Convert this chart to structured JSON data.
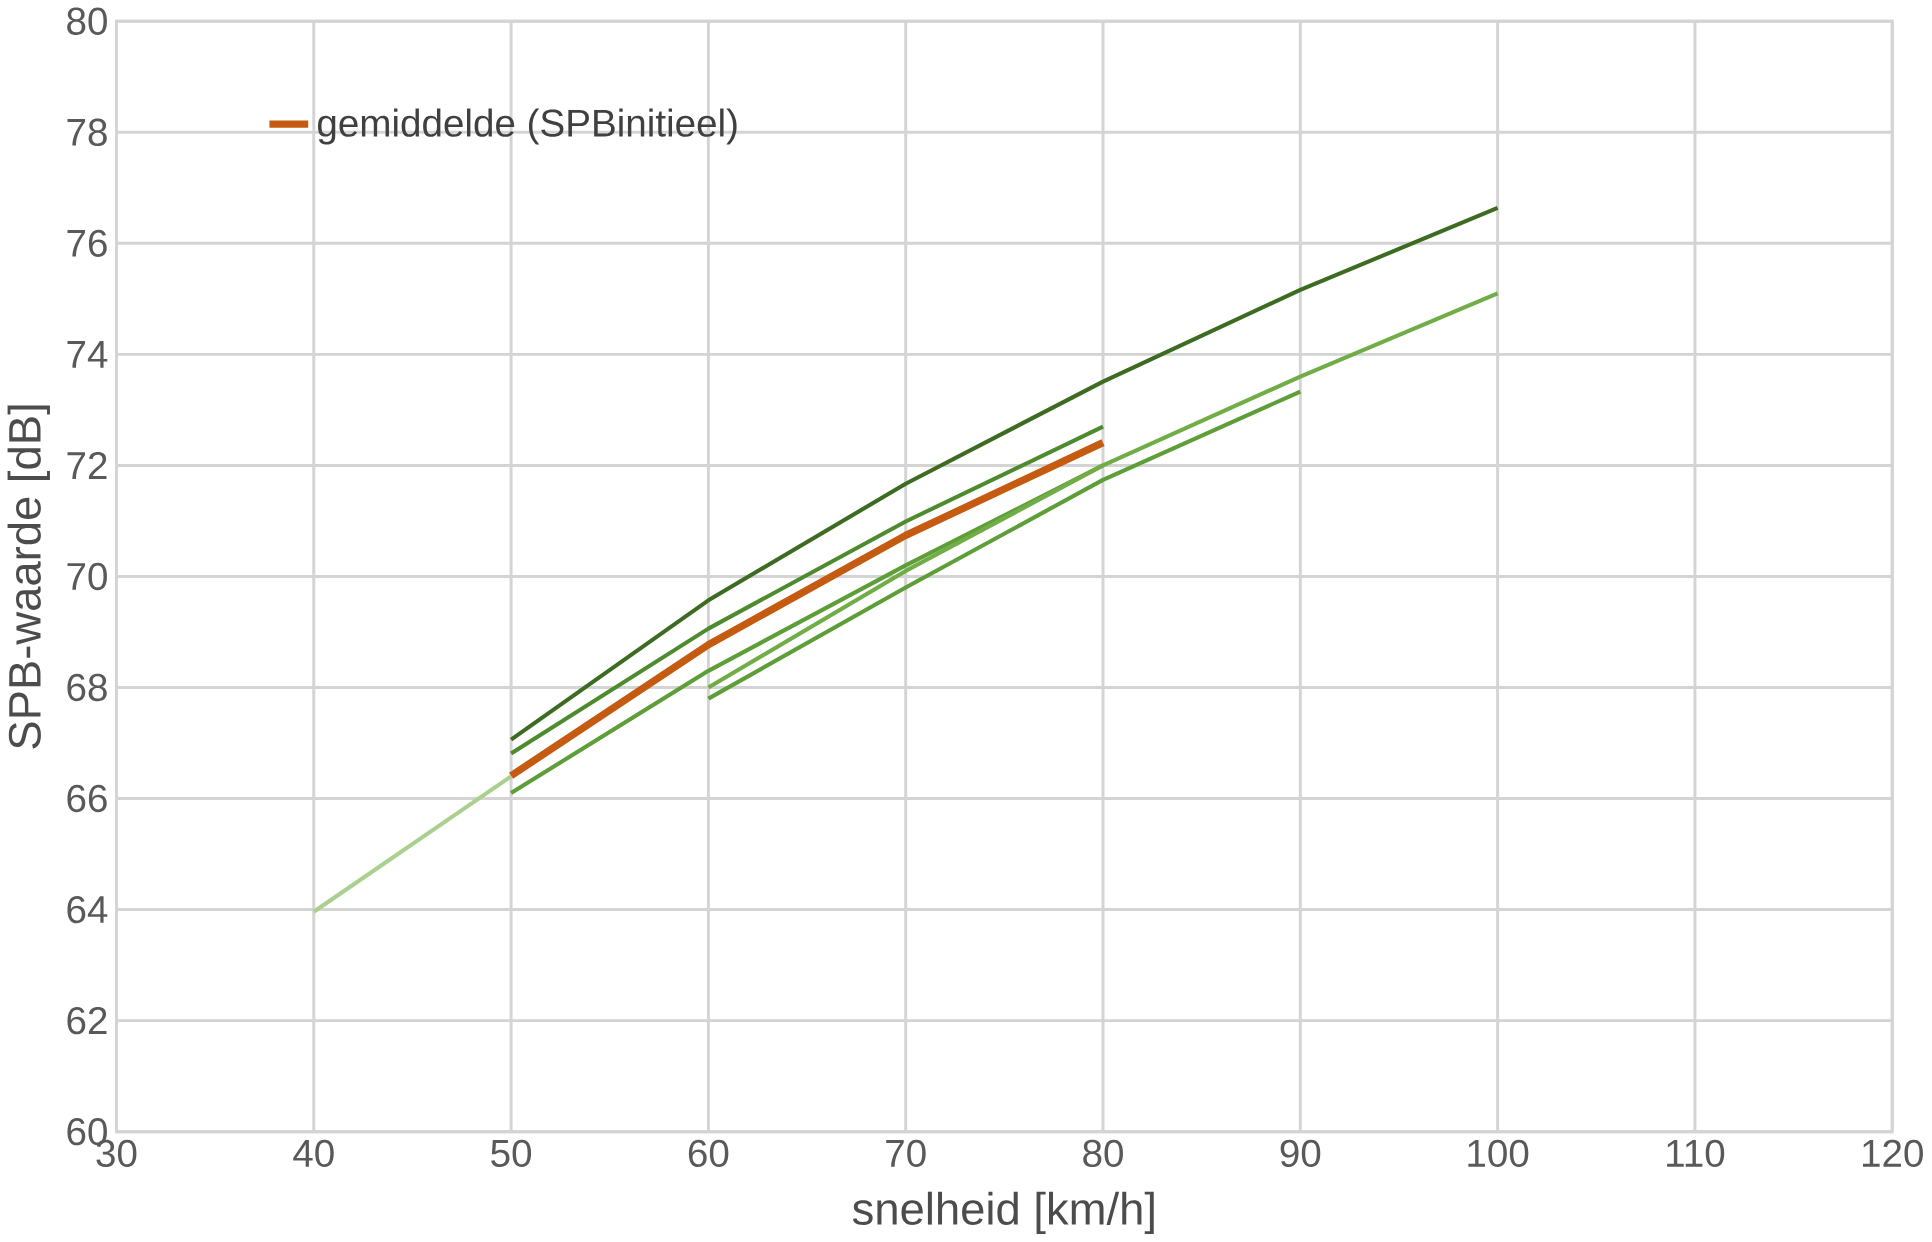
{
  "chart_data": {
    "type": "line",
    "xlabel": "snelheid [km/h]",
    "ylabel": "SPB-waarde [dB]",
    "xlim": [
      30,
      120
    ],
    "xticks": [
      30,
      40,
      50,
      60,
      70,
      80,
      90,
      100,
      110,
      120
    ],
    "ylim": [
      60,
      80
    ],
    "yticks": [
      60,
      62,
      64,
      66,
      68,
      70,
      72,
      74,
      76,
      78,
      80
    ],
    "grid": true,
    "legend": "top left",
    "marker": "none",
    "series": [
      {
        "color": "#a9d08e",
        "x": [
          40,
          50
        ],
        "values": [
          63.96,
          66.4
        ]
      },
      {
        "color": "#3d6b22",
        "x": [
          50,
          60,
          70,
          80,
          90,
          100
        ],
        "values": [
          67.06,
          69.57,
          71.67,
          73.51,
          75.16,
          76.64
        ]
      },
      {
        "color": "#4e8a2e",
        "x": [
          50,
          60,
          70,
          80
        ],
        "values": [
          66.81,
          69.06,
          70.99,
          72.7
        ]
      },
      {
        "color": "#5e9e38",
        "x": [
          50,
          60,
          70,
          80
        ],
        "values": [
          66.1,
          68.3,
          70.2,
          72.0
        ]
      },
      {
        "color": "#70ad47",
        "x": [
          60,
          70,
          80,
          90,
          100
        ],
        "values": [
          68.0,
          70.1,
          72.0,
          73.6,
          75.1
        ]
      },
      {
        "color": "#5e9e38",
        "x": [
          60,
          70,
          80,
          90
        ],
        "values": [
          67.8,
          69.8,
          71.74,
          73.33
        ]
      },
      {
        "name": "gemiddelde (SPBinitieel)",
        "color": "#c55a11",
        "x": [
          50,
          60,
          70,
          80
        ],
        "values": [
          66.41,
          68.77,
          70.74,
          72.41
        ]
      }
    ]
  }
}
